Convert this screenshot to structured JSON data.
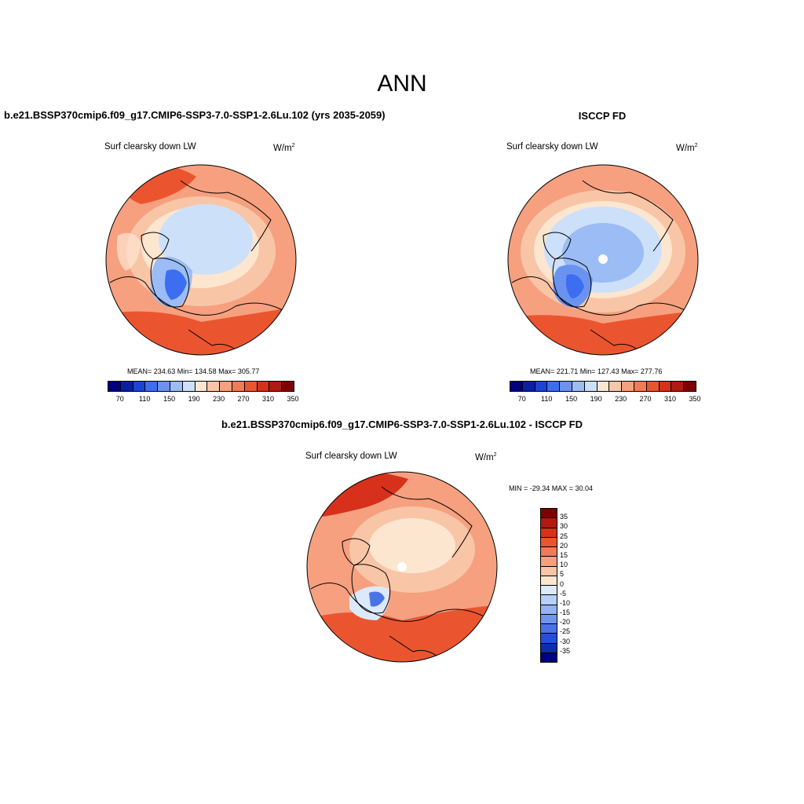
{
  "main_title": "ANN",
  "panels": [
    {
      "title": "b.e21.BSSP370cmip6.f09_g17.CMIP6-SSP3-7.0-SSP1-2.6Lu.102 (yrs 2035-2059)",
      "field": "Surf clearsky down LW",
      "units": "W/m",
      "units_sup": "2",
      "stats": "MEAN= 234.63  Min= 134.58  Max= 305.77"
    },
    {
      "title": "ISCCP FD",
      "field": "Surf clearsky down LW",
      "units": "W/m",
      "units_sup": "2",
      "stats": "MEAN= 221.71  Min= 127.43  Max= 277.76"
    },
    {
      "title": "b.e21.BSSP370cmip6.f09_g17.CMIP6-SSP3-7.0-SSP1-2.6Lu.102 - ISCCP FD",
      "field": "Surf clearsky down LW",
      "units": "W/m",
      "units_sup": "2",
      "stats": "MIN = -29.34 MAX =  30.04"
    }
  ],
  "abs_colorbar": {
    "colors": [
      "#00007f",
      "#0a1fa8",
      "#1a44d8",
      "#3d6df0",
      "#6a93f0",
      "#9bbcf4",
      "#cde0fa",
      "#fde6d0",
      "#f9c5a7",
      "#f6a07f",
      "#f27a57",
      "#ea5530",
      "#d7301b",
      "#b01a10",
      "#7f0000"
    ],
    "tick_labels": [
      "70",
      "110",
      "150",
      "190",
      "230",
      "270",
      "310",
      "350"
    ]
  },
  "diff_colorbar": {
    "colors": [
      "#7f0000",
      "#b01a10",
      "#d7301b",
      "#ea5530",
      "#f27a57",
      "#f6a07f",
      "#f9c5a7",
      "#fde6d0",
      "#dce9fb",
      "#b7cff6",
      "#93b3f2",
      "#6f95ee",
      "#4a74e6",
      "#2650d4",
      "#0d2cb0",
      "#00007f"
    ],
    "tick_labels": [
      "35",
      "30",
      "25",
      "20",
      "15",
      "10",
      "5",
      "0",
      "-5",
      "-10",
      "-15",
      "-20",
      "-25",
      "-30",
      "-35"
    ]
  }
}
